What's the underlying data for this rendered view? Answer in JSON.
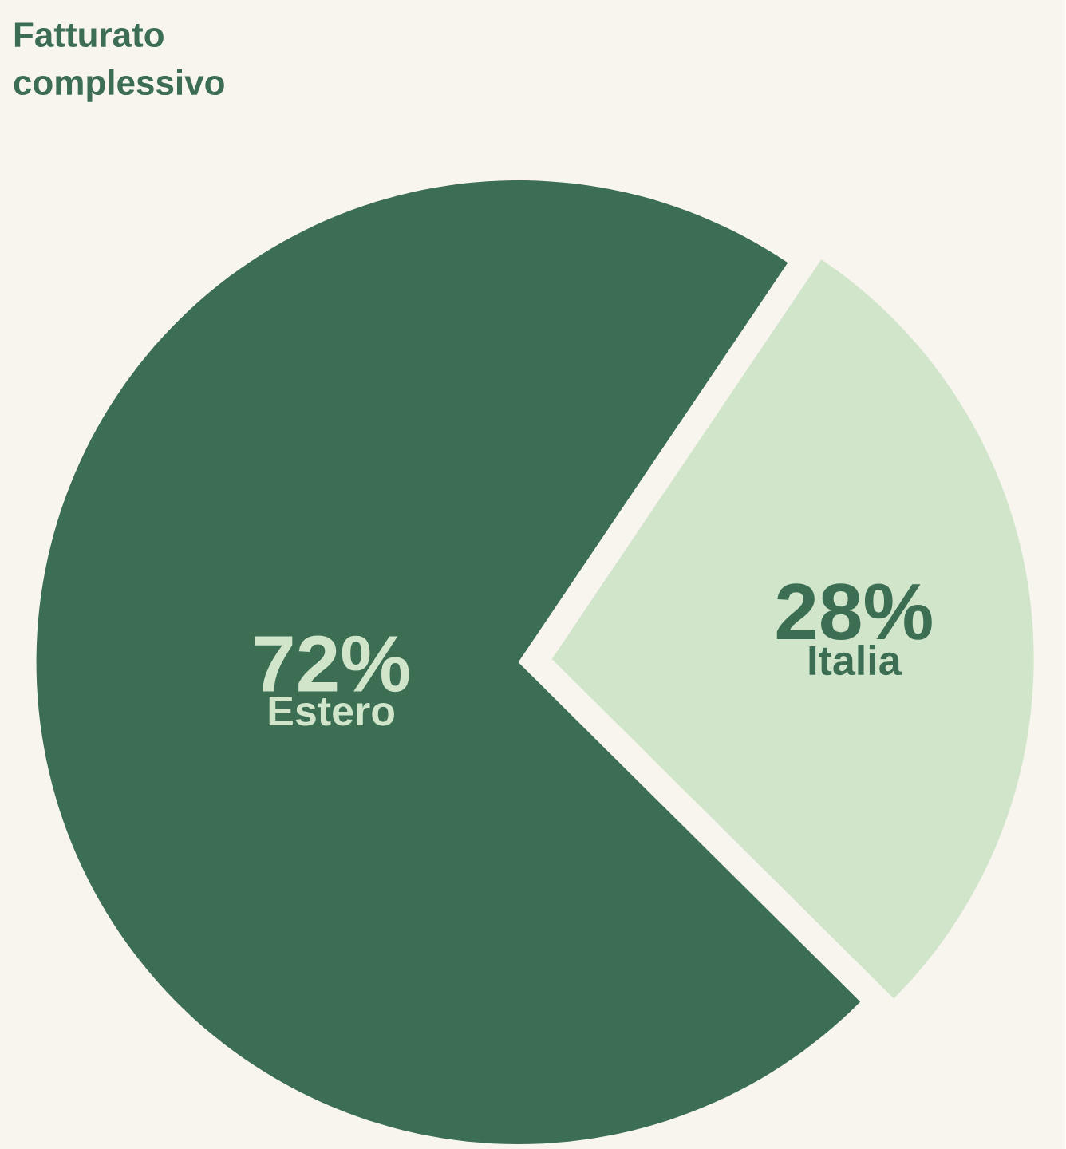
{
  "chart_data": {
    "type": "pie",
    "title": "Fatturato complessivo",
    "categories": [
      "Estero",
      "Italia"
    ],
    "values": [
      72,
      28
    ],
    "colors": [
      "#3b6e52",
      "#d1e5cb"
    ],
    "value_labels": [
      "72%",
      "28%"
    ]
  }
}
